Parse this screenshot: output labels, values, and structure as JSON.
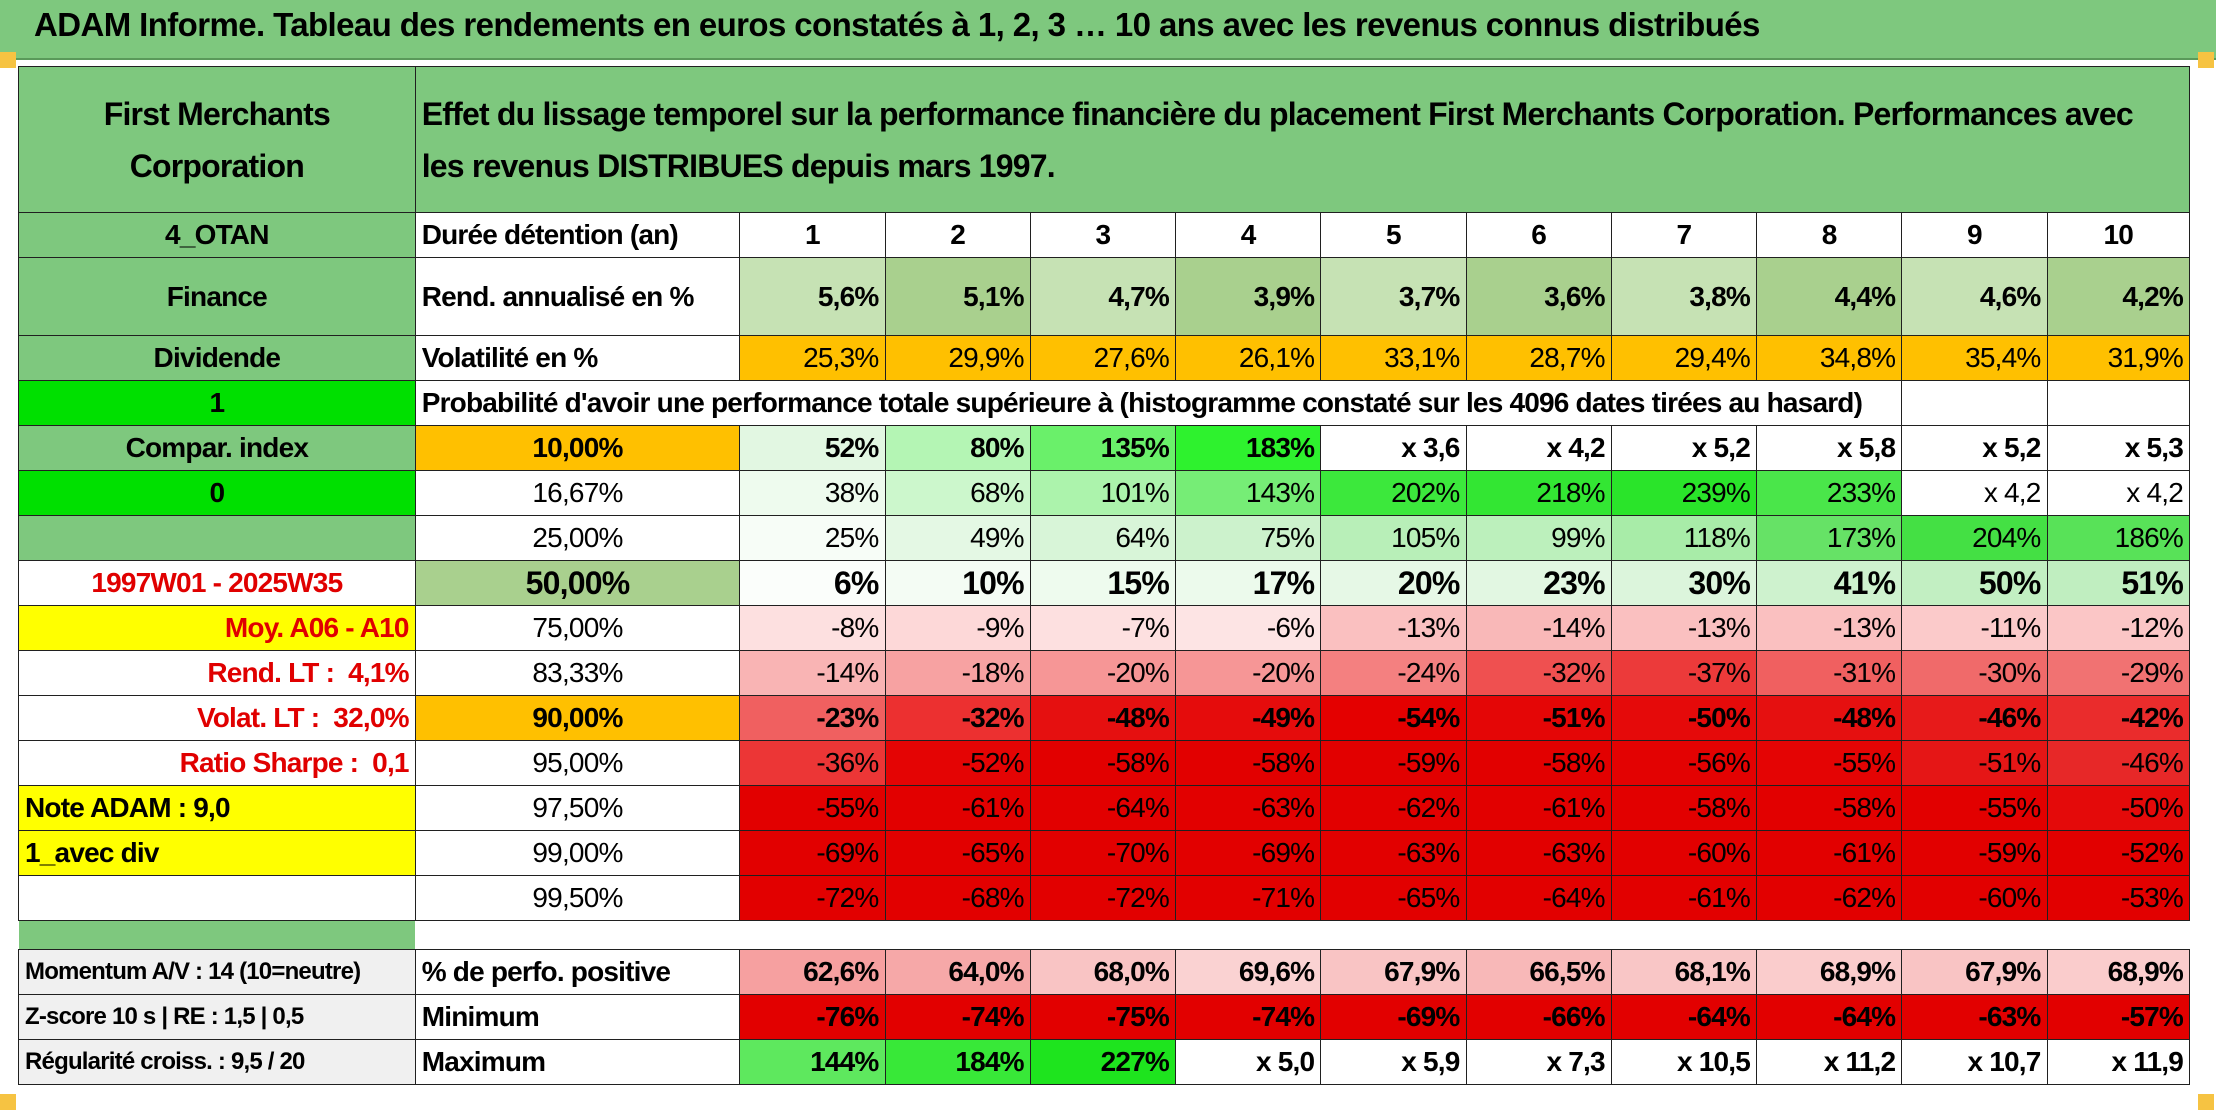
{
  "title": "ADAM Informe. Tableau des rendements en euros constatés à 1, 2, 3 … 10 ans avec les revenus connus distribués",
  "header": {
    "name": "First Merchants Corporation",
    "description": "Effet du lissage temporel sur la performance financière du placement First Merchants Corporation. Performances avec les revenus DISTRIBUES depuis mars 1997."
  },
  "left_panel": {
    "tag": "4_OTAN",
    "sector": "Finance",
    "dividend": "Dividende",
    "one": "1",
    "compar_index": "Compar. index",
    "zero": "0",
    "period": "1997W01 - 2025W35",
    "moy": "Moy. A06 - A10",
    "rend_lt_label": "Rend. LT :",
    "rend_lt_value": "4,1%",
    "volat_lt_label": "Volat. LT :",
    "volat_lt_value": "32,0%",
    "sharpe_label": "Ratio Sharpe :",
    "sharpe_value": "0,1",
    "note": "Note ADAM : 9,0",
    "avec_div": "1_avec div",
    "momentum": "Momentum A/V : 14 (10=neutre)",
    "zscore": "Z-score 10 s | RE : 1,5 | 0,5",
    "regularite": "Régularité croiss. : 9,5 / 20"
  },
  "durations": {
    "label": "Durée détention (an)",
    "years": [
      "1",
      "2",
      "3",
      "4",
      "5",
      "6",
      "7",
      "8",
      "9",
      "10"
    ]
  },
  "rend": {
    "label": "Rend. annualisé en %",
    "values": [
      "5,6%",
      "5,1%",
      "4,7%",
      "3,9%",
      "3,7%",
      "3,6%",
      "3,8%",
      "4,4%",
      "4,6%",
      "4,2%"
    ]
  },
  "vol": {
    "label": "Volatilité en %",
    "values": [
      "25,3%",
      "29,9%",
      "27,6%",
      "26,1%",
      "33,1%",
      "28,7%",
      "29,4%",
      "34,8%",
      "35,4%",
      "31,9%"
    ]
  },
  "probability_title": "Probabilité d'avoir une performance totale supérieure à (histogramme constaté sur les 4096 dates tirées au hasard)",
  "prob_rows": [
    {
      "label": "10,00%",
      "values": [
        "52%",
        "80%",
        "135%",
        "183%",
        "x 3,6",
        "x 4,2",
        "x 5,2",
        "x 5,8",
        "x 5,2",
        "x 5,3"
      ]
    },
    {
      "label": "16,67%",
      "values": [
        "38%",
        "68%",
        "101%",
        "143%",
        "202%",
        "218%",
        "239%",
        "233%",
        "x 4,2",
        "x 4,2"
      ]
    },
    {
      "label": "25,00%",
      "values": [
        "25%",
        "49%",
        "64%",
        "75%",
        "105%",
        "99%",
        "118%",
        "173%",
        "204%",
        "186%"
      ]
    },
    {
      "label": "50,00%",
      "values": [
        "6%",
        "10%",
        "15%",
        "17%",
        "20%",
        "23%",
        "30%",
        "41%",
        "50%",
        "51%"
      ]
    },
    {
      "label": "75,00%",
      "values": [
        "-8%",
        "-9%",
        "-7%",
        "-6%",
        "-13%",
        "-14%",
        "-13%",
        "-13%",
        "-11%",
        "-12%"
      ]
    },
    {
      "label": "83,33%",
      "values": [
        "-14%",
        "-18%",
        "-20%",
        "-20%",
        "-24%",
        "-32%",
        "-37%",
        "-31%",
        "-30%",
        "-29%"
      ]
    },
    {
      "label": "90,00%",
      "values": [
        "-23%",
        "-32%",
        "-48%",
        "-49%",
        "-54%",
        "-51%",
        "-50%",
        "-48%",
        "-46%",
        "-42%"
      ]
    },
    {
      "label": "95,00%",
      "values": [
        "-36%",
        "-52%",
        "-58%",
        "-58%",
        "-59%",
        "-58%",
        "-56%",
        "-55%",
        "-51%",
        "-46%"
      ]
    },
    {
      "label": "97,50%",
      "values": [
        "-55%",
        "-61%",
        "-64%",
        "-63%",
        "-62%",
        "-61%",
        "-58%",
        "-58%",
        "-55%",
        "-50%"
      ]
    },
    {
      "label": "99,00%",
      "values": [
        "-69%",
        "-65%",
        "-70%",
        "-69%",
        "-63%",
        "-63%",
        "-60%",
        "-61%",
        "-59%",
        "-52%"
      ]
    },
    {
      "label": "99,50%",
      "values": [
        "-72%",
        "-68%",
        "-72%",
        "-71%",
        "-65%",
        "-64%",
        "-61%",
        "-62%",
        "-60%",
        "-53%"
      ]
    }
  ],
  "prob_colors": [
    [
      "#e2f7e2",
      "#b4f5b4",
      "#6af06a",
      "#2ef22e",
      "#ffffff",
      "#ffffff",
      "#ffffff",
      "#ffffff",
      "#ffffff",
      "#ffffff"
    ],
    [
      "#eefbee",
      "#ccf7cc",
      "#acf3ac",
      "#76ed76",
      "#3ce83c",
      "#33e633",
      "#2ae42a",
      "#4ae64a",
      "#ffffff",
      "#ffffff"
    ],
    [
      "#f7fdf7",
      "#e4f8e4",
      "#d8f5d8",
      "#ccf2cc",
      "#b8efb8",
      "#bcf0bc",
      "#a8eca8",
      "#66e266",
      "#44e044",
      "#58e258"
    ],
    [
      "#fbfefb",
      "#f4fcf4",
      "#eefbee",
      "#ecfaec",
      "#e6f8e6",
      "#e2f7e2",
      "#dcf5dc",
      "#cef2ce",
      "#c2efc2",
      "#c0eec0"
    ],
    [
      "#fde0e0",
      "#fdd8d8",
      "#fde0e0",
      "#fde4e4",
      "#fac0c0",
      "#f9b8b8",
      "#fac0c0",
      "#fac0c0",
      "#fbcaca",
      "#fbc6c6"
    ],
    [
      "#f9b4b4",
      "#f7a2a2",
      "#f69696",
      "#f69696",
      "#f48080",
      "#ef5050",
      "#ec3a3a",
      "#f06060",
      "#f06a6a",
      "#f17272"
    ],
    [
      "#f06060",
      "#ec3030",
      "#e51010",
      "#e50c0c",
      "#e40000",
      "#e40606",
      "#e50a0a",
      "#e51010",
      "#e71a1a",
      "#ea2c2c"
    ],
    [
      "#ec3636",
      "#e40404",
      "#e20000",
      "#e20000",
      "#e20000",
      "#e20000",
      "#e30202",
      "#e40404",
      "#e51616",
      "#e72828"
    ],
    [
      "#e20000",
      "#e20000",
      "#e20000",
      "#e20000",
      "#e20000",
      "#e20000",
      "#e20000",
      "#e20000",
      "#e20000",
      "#e40a0a"
    ],
    [
      "#e20000",
      "#e20000",
      "#e20000",
      "#e20000",
      "#e20000",
      "#e20000",
      "#e20000",
      "#e20000",
      "#e20000",
      "#e20000"
    ],
    [
      "#e20000",
      "#e20000",
      "#e20000",
      "#e20000",
      "#e20000",
      "#e20000",
      "#e20000",
      "#e20000",
      "#e20000",
      "#e20000"
    ]
  ],
  "pos": {
    "label": "% de perfo. positive",
    "values": [
      "62,6%",
      "64,0%",
      "68,0%",
      "69,6%",
      "67,9%",
      "66,5%",
      "68,1%",
      "68,9%",
      "67,9%",
      "68,9%"
    ],
    "colors": [
      "#f6a0a0",
      "#f6a8a8",
      "#f9c4c4",
      "#fad2d2",
      "#f9c4c4",
      "#f8b8b8",
      "#f9c6c6",
      "#facccc",
      "#f9c4c4",
      "#facccc"
    ]
  },
  "min": {
    "label": "Minimum",
    "values": [
      "-76%",
      "-74%",
      "-75%",
      "-74%",
      "-69%",
      "-66%",
      "-64%",
      "-64%",
      "-63%",
      "-57%"
    ],
    "colors": [
      "#e20000",
      "#e20000",
      "#e20000",
      "#e20000",
      "#e20000",
      "#e20000",
      "#e20000",
      "#e20000",
      "#e20000",
      "#e20000"
    ]
  },
  "max": {
    "label": "Maximum",
    "values": [
      "144%",
      "184%",
      "227%",
      "x 5,0",
      "x 5,9",
      "x 7,3",
      "x 10,5",
      "x 11,2",
      "x 10,7",
      "x 11,9"
    ],
    "colors": [
      "#5ee85e",
      "#38e838",
      "#1ee41e",
      "#ffffff",
      "#ffffff",
      "#ffffff",
      "#ffffff",
      "#ffffff",
      "#ffffff",
      "#ffffff"
    ]
  }
}
